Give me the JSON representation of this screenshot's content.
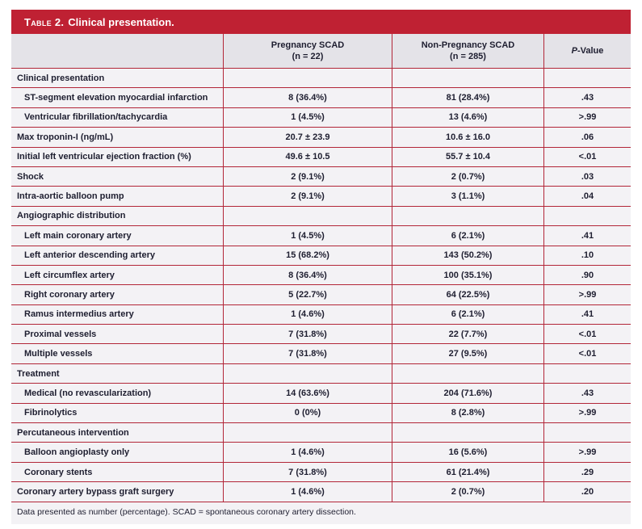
{
  "title": {
    "table_label": "Table 2.",
    "table_caption": "Clinical presentation."
  },
  "columns": {
    "pregnancy": {
      "line1": "Pregnancy SCAD",
      "line2": "(n = 22)"
    },
    "non_pregnancy": {
      "line1": "Non-Pregnancy SCAD",
      "line2": "(n = 285)"
    },
    "p_value": {
      "italic_part": "P",
      "rest": "-Value"
    }
  },
  "rows": [
    {
      "label": "Clinical presentation",
      "section": true,
      "indent": false,
      "pregnancy": "",
      "non_pregnancy": "",
      "p": ""
    },
    {
      "label": "ST-segment elevation myocardial infarction",
      "section": false,
      "indent": true,
      "pregnancy": "8 (36.4%)",
      "non_pregnancy": "81 (28.4%)",
      "p": ".43"
    },
    {
      "label": "Ventricular fibrillation/tachycardia",
      "section": false,
      "indent": true,
      "pregnancy": "1 (4.5%)",
      "non_pregnancy": "13 (4.6%)",
      "p": ">.99"
    },
    {
      "label": "Max troponin-I (ng/mL)",
      "section": false,
      "indent": false,
      "pregnancy": "20.7 ± 23.9",
      "non_pregnancy": "10.6 ± 16.0",
      "p": ".06"
    },
    {
      "label": "Initial left ventricular ejection fraction (%)",
      "section": false,
      "indent": false,
      "pregnancy": "49.6 ± 10.5",
      "non_pregnancy": "55.7 ± 10.4",
      "p": "<.01"
    },
    {
      "label": "Shock",
      "section": false,
      "indent": false,
      "pregnancy": "2 (9.1%)",
      "non_pregnancy": "2 (0.7%)",
      "p": ".03"
    },
    {
      "label": "Intra-aortic balloon pump",
      "section": false,
      "indent": false,
      "pregnancy": "2 (9.1%)",
      "non_pregnancy": "3 (1.1%)",
      "p": ".04"
    },
    {
      "label": "Angiographic distribution",
      "section": true,
      "indent": false,
      "pregnancy": "",
      "non_pregnancy": "",
      "p": ""
    },
    {
      "label": "Left main coronary artery",
      "section": false,
      "indent": true,
      "pregnancy": "1 (4.5%)",
      "non_pregnancy": "6 (2.1%)",
      "p": ".41"
    },
    {
      "label": "Left anterior descending artery",
      "section": false,
      "indent": true,
      "pregnancy": "15 (68.2%)",
      "non_pregnancy": "143 (50.2%)",
      "p": ".10"
    },
    {
      "label": "Left circumflex artery",
      "section": false,
      "indent": true,
      "pregnancy": "8 (36.4%)",
      "non_pregnancy": "100 (35.1%)",
      "p": ".90"
    },
    {
      "label": "Right coronary artery",
      "section": false,
      "indent": true,
      "pregnancy": "5 (22.7%)",
      "non_pregnancy": "64 (22.5%)",
      "p": ">.99"
    },
    {
      "label": "Ramus intermedius artery",
      "section": false,
      "indent": true,
      "pregnancy": "1 (4.6%)",
      "non_pregnancy": "6 (2.1%)",
      "p": ".41"
    },
    {
      "label": "Proximal vessels",
      "section": false,
      "indent": true,
      "pregnancy": "7 (31.8%)",
      "non_pregnancy": "22 (7.7%)",
      "p": "<.01"
    },
    {
      "label": "Multiple vessels",
      "section": false,
      "indent": true,
      "pregnancy": "7 (31.8%)",
      "non_pregnancy": "27 (9.5%)",
      "p": "<.01"
    },
    {
      "label": "Treatment",
      "section": true,
      "indent": false,
      "pregnancy": "",
      "non_pregnancy": "",
      "p": ""
    },
    {
      "label": "Medical (no revascularization)",
      "section": false,
      "indent": true,
      "pregnancy": "14 (63.6%)",
      "non_pregnancy": "204 (71.6%)",
      "p": ".43"
    },
    {
      "label": "Fibrinolytics",
      "section": false,
      "indent": true,
      "pregnancy": "0 (0%)",
      "non_pregnancy": "8 (2.8%)",
      "p": ">.99"
    },
    {
      "label": "Percutaneous intervention",
      "section": true,
      "indent": false,
      "pregnancy": "",
      "non_pregnancy": "",
      "p": ""
    },
    {
      "label": "Balloon angioplasty only",
      "section": false,
      "indent": true,
      "pregnancy": "1 (4.6%)",
      "non_pregnancy": "16 (5.6%)",
      "p": ">.99"
    },
    {
      "label": "Coronary stents",
      "section": false,
      "indent": true,
      "pregnancy": "7 (31.8%)",
      "non_pregnancy": "61 (21.4%)",
      "p": ".29"
    },
    {
      "label": "Coronary artery bypass graft surgery",
      "section": false,
      "indent": false,
      "pregnancy": "1 (4.6%)",
      "non_pregnancy": "2 (0.7%)",
      "p": ".20"
    }
  ],
  "footnote": "Data presented as number (percentage). SCAD = spontaneous coronary artery dissection.",
  "colors": {
    "header_red": "#BF2133",
    "border_red": "#B22638",
    "header_row_bg": "#E4E3E8",
    "row_bg": "#F3F2F5",
    "text": "#1E1E30"
  }
}
